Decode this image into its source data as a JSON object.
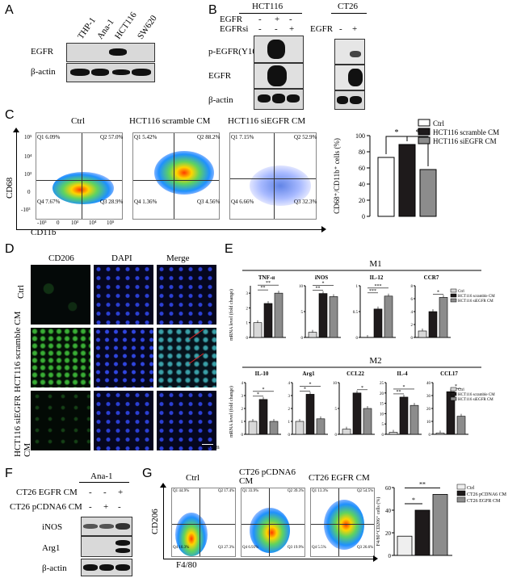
{
  "panel_labels": {
    "A": "A",
    "B": "B",
    "C": "C",
    "D": "D",
    "E": "E",
    "F": "F",
    "G": "G"
  },
  "panel_a": {
    "lanes": [
      "THP-1",
      "Ana-1",
      "HCT116",
      "SW620"
    ],
    "rows": [
      "EGFR",
      "β-actin"
    ]
  },
  "panel_b": {
    "hct_title": "HCT116",
    "ct_title": "CT26",
    "rows": [
      "p-EGFR(Y1068)",
      "EGFR",
      "β-actin"
    ],
    "hct_conditions": [
      {
        "label": "EGFR",
        "marks": [
          "-",
          "+",
          "-"
        ]
      },
      {
        "label": "EGFRsi",
        "marks": [
          "-",
          "-",
          "+"
        ]
      }
    ],
    "ct_condition": {
      "label": "EGFR",
      "marks": [
        "-",
        "+"
      ]
    }
  },
  "panel_c": {
    "plots": [
      {
        "title": "Ctrl",
        "q": [
          "Q1\n6.09%",
          "Q2\n57.0%",
          "Q3\n28.9%",
          "Q4\n7.67%"
        ]
      },
      {
        "title": "HCT116 scramble CM",
        "q": [
          "Q1\n5.42%",
          "Q2\n88.2%",
          "Q3\n4.56%",
          "Q4\n1.36%"
        ]
      },
      {
        "title": "HCT116 siEGFR CM",
        "q": [
          "Q1\n7.15%",
          "Q2\n52.9%",
          "Q3\n32.3%",
          "Q4\n6.66%"
        ]
      }
    ],
    "ylabel": "CD68",
    "xlabel": "CD11b",
    "ticks_y": [
      "10⁵",
      "10⁴",
      "10³",
      "0",
      "-10³"
    ],
    "ticks_x": [
      "-10³",
      "0",
      "10³",
      "10⁴",
      "10⁵"
    ],
    "sig": [
      "*",
      "*"
    ]
  },
  "panel_d": {
    "cols": [
      "CD206",
      "DAPI",
      "Merge"
    ],
    "rows": [
      "Ctrl",
      "HCT116 scramble CM",
      "HCT116 siEGFR CM"
    ],
    "scale": "100μm"
  },
  "panel_e": {
    "m1_title": "M1",
    "m2_title": "M2",
    "ylabel": "mRNA level (fold change)",
    "legend": [
      "Ctrl",
      "HCT116 scramble CM",
      "HCT116 siEGFR CM"
    ]
  },
  "panel_f": {
    "title": "Ana-1",
    "conditions": [
      {
        "label": "CT26 EGFR CM",
        "marks": [
          "-",
          "-",
          "+"
        ]
      },
      {
        "label": "CT26 pCDNA6 CM",
        "marks": [
          "-",
          "+",
          "-"
        ]
      }
    ],
    "rows": [
      "iNOS",
      "Arg1",
      "β-actin"
    ]
  },
  "panel_g": {
    "plots": [
      {
        "title": "Ctrl",
        "q": [
          "Q1\n44.9%",
          "Q2\n17.4%",
          "Q3\n27.3%",
          "Q4\n10.3%"
        ]
      },
      {
        "title": "CT26 pCDNA6\nCM",
        "q": [
          "Q1\n33.9%",
          "Q2\n39.3%",
          "Q3\n19.9%",
          "Q4\n6.93%"
        ]
      },
      {
        "title": "CT26 EGFR CM",
        "q": [
          "Q1\n13.3%",
          "Q2\n54.5%",
          "Q3\n26.6%",
          "Q4\n5.5%"
        ]
      }
    ],
    "ylabel": "CD206",
    "xlabel": "F4/80",
    "sig": [
      "*",
      "**"
    ]
  },
  "colors": {
    "ctrl": "#ffffff",
    "scramble": "#1e1a1b",
    "siegfr": "#8c8c8c",
    "ctrl_e": "#d8d8d8"
  },
  "chart_data": [
    {
      "type": "bar",
      "panel": "C",
      "categories": [
        "Ctrl",
        "HCT116 scramble CM",
        "HCT116 siEGFR CM"
      ],
      "values": [
        73,
        89,
        58
      ],
      "ylabel": "CD68⁺/CD11b⁺ cells (%)",
      "ylim": [
        0,
        100
      ],
      "yticks": [
        "0",
        "20",
        "40",
        "60",
        "80",
        "100"
      ],
      "legend": [
        "Ctrl",
        "HCT116 scramble CM",
        "HCT116 siEGFR CM"
      ],
      "legend_position": "top-right"
    },
    {
      "type": "bar",
      "panel": "E-M1",
      "series_names": [
        "Ctrl",
        "HCT116 scramble CM",
        "HCT116 siEGFR CM"
      ],
      "groups": [
        {
          "name": "TNF-α",
          "values": [
            1.0,
            2.3,
            3.0
          ],
          "ylim": [
            0,
            3.5
          ],
          "yticks": [
            "0",
            "1",
            "2",
            "3"
          ],
          "sig": [
            "**",
            "**"
          ]
        },
        {
          "name": "iNOS",
          "values": [
            1.0,
            8.5,
            7.9
          ],
          "ylim": [
            0,
            10
          ],
          "yticks": [
            "0",
            "5",
            "10"
          ],
          "sig": [
            "**",
            "*"
          ]
        },
        {
          "name": "IL-12",
          "values": [
            0.0,
            0.55,
            0.8
          ],
          "ylim": [
            0,
            1
          ],
          "yticks": [
            "0",
            "0.5",
            "1"
          ],
          "sig": [
            "***",
            "***"
          ]
        },
        {
          "name": "CCR7",
          "values": [
            1.0,
            4.0,
            6.2
          ],
          "ylim": [
            0,
            8
          ],
          "yticks": [
            "0",
            "2",
            "4",
            "6",
            "8"
          ],
          "sig": [
            "*"
          ]
        }
      ]
    },
    {
      "type": "bar",
      "panel": "E-M2",
      "series_names": [
        "Ctrl",
        "HCT116 scramble CM",
        "HCT116 siEGFR CM"
      ],
      "groups": [
        {
          "name": "IL-10",
          "values": [
            1.0,
            2.7,
            1.0
          ],
          "ylim": [
            0,
            4
          ],
          "yticks": [
            "0",
            "1",
            "2",
            "3",
            "4"
          ],
          "sig": [
            "*",
            "*"
          ]
        },
        {
          "name": "Arg1",
          "values": [
            1.0,
            3.1,
            1.2
          ],
          "ylim": [
            0,
            4
          ],
          "yticks": [
            "0",
            "1",
            "2",
            "3",
            "4"
          ],
          "sig": [
            "*",
            "*"
          ]
        },
        {
          "name": "CCL22",
          "values": [
            1.0,
            8.0,
            5.0
          ],
          "ylim": [
            0,
            10
          ],
          "yticks": [
            "0",
            "5",
            "10"
          ],
          "sig": [
            "*"
          ]
        },
        {
          "name": "IL-4",
          "values": [
            1.0,
            18.0,
            14.0
          ],
          "ylim": [
            0,
            25
          ],
          "yticks": [
            "0",
            "5",
            "10",
            "15",
            "20",
            "25"
          ],
          "sig": [
            "**",
            "*"
          ]
        },
        {
          "name": "CCL17",
          "values": [
            1.0,
            33.0,
            14.0
          ],
          "ylim": [
            0,
            40
          ],
          "yticks": [
            "0",
            "10",
            "20",
            "30",
            "40"
          ],
          "sig": [
            "*"
          ]
        }
      ]
    },
    {
      "type": "bar",
      "panel": "G",
      "categories": [
        "Ctrl",
        "CT26 pCDNA6 CM",
        "CT26 EGFR CM"
      ],
      "values": [
        17,
        40,
        54
      ],
      "ylabel": "F4/80⁺CD206⁺ cells (%)",
      "ylim": [
        0,
        60
      ],
      "yticks": [
        "0",
        "20",
        "40",
        "60"
      ],
      "legend": [
        "Ctrl",
        "CT26 pCDNA6 CM",
        "CT26 EGFR CM"
      ],
      "legend_position": "top-right"
    }
  ]
}
